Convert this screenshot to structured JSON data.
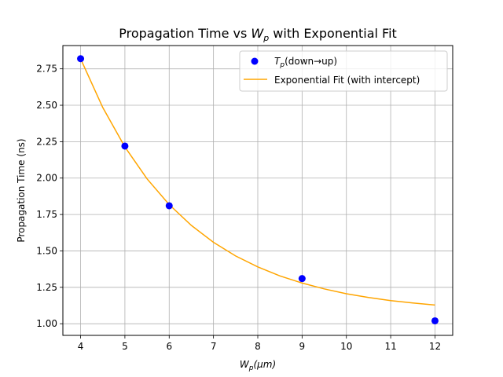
{
  "chart_data": {
    "type": "scatter",
    "title": {
      "prefix": "Propagation Time vs ",
      "var_main": "W",
      "var_sub": "p",
      "suffix": " with Exponential Fit"
    },
    "xlabel": {
      "main": "W",
      "sub": "p",
      "rest": "(μm)"
    },
    "ylabel": "Propagation Time (ns)",
    "xlim": [
      3.6,
      12.4
    ],
    "ylim": [
      0.92,
      2.91
    ],
    "xticks": [
      4,
      5,
      6,
      7,
      8,
      9,
      10,
      11,
      12
    ],
    "yticks": [
      1.0,
      1.25,
      1.5,
      1.75,
      2.0,
      2.25,
      2.5,
      2.75
    ],
    "ytick_labels": [
      "1.00",
      "1.25",
      "1.50",
      "1.75",
      "2.00",
      "2.25",
      "2.50",
      "2.75"
    ],
    "grid": true,
    "legend_position": "upper-right",
    "series": [
      {
        "kind": "scatter",
        "legend": {
          "main": "T",
          "sub": "p",
          "rest": "(down→up)"
        },
        "color": "#0000ff",
        "x": [
          4,
          5,
          6,
          9,
          12
        ],
        "y": [
          2.82,
          2.22,
          1.81,
          1.31,
          1.02
        ]
      },
      {
        "kind": "line",
        "legend": {
          "main": "Exponential Fit (with intercept)"
        },
        "color": "#ffa500",
        "x": [
          4,
          4.5,
          5,
          5.5,
          6,
          6.5,
          7,
          7.5,
          8,
          8.5,
          9,
          9.5,
          10,
          10.5,
          11,
          11.5,
          12
        ],
        "y": [
          2.82,
          2.485,
          2.214,
          1.995,
          1.818,
          1.675,
          1.559,
          1.465,
          1.39,
          1.328,
          1.279,
          1.239,
          1.206,
          1.18,
          1.159,
          1.142,
          1.128
        ]
      }
    ]
  }
}
